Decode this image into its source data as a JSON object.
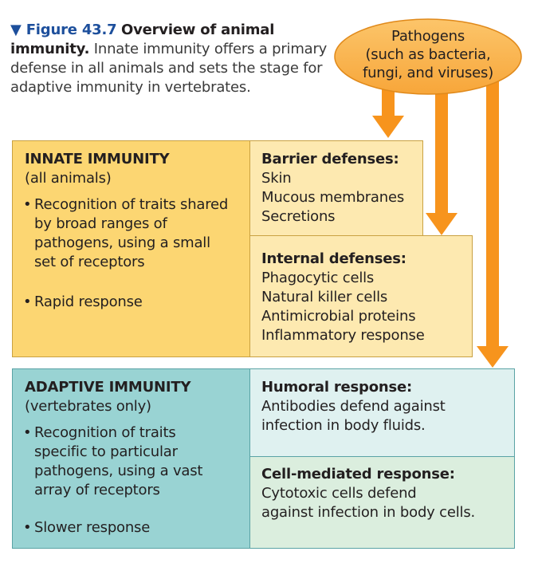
{
  "caption": {
    "figure_label": "▼ Figure 43.7",
    "title": "Overview of animal immunity.",
    "body": "Innate immunity offers a primary defense in all animals and sets the stage for adaptive immunity in vertebrates."
  },
  "pathogens": {
    "line1": "Pathogens",
    "line2": "(such as bacteria,",
    "line3": "fungi, and viruses)"
  },
  "innate": {
    "heading": "INNATE IMMUNITY",
    "subheading": "(all animals)",
    "bullet1_lines": [
      "Recognition of traits shared",
      "by broad ranges of",
      "pathogens, using a small",
      "set of receptors"
    ],
    "bullet2": "Rapid response"
  },
  "barrier": {
    "heading": "Barrier defenses:",
    "items": [
      "Skin",
      "Mucous membranes",
      "Secretions"
    ]
  },
  "internal": {
    "heading": "Internal defenses:",
    "items": [
      "Phagocytic cells",
      "Natural killer cells",
      "Antimicrobial proteins",
      "Inflammatory response"
    ]
  },
  "adaptive": {
    "heading": "ADAPTIVE IMMUNITY",
    "subheading": "(vertebrates only)",
    "bullet1_lines": [
      "Recognition of traits",
      "specific to particular",
      "pathogens, using a vast",
      "array of receptors"
    ],
    "bullet2": "Slower response"
  },
  "humoral": {
    "heading": "Humoral response:",
    "lines": [
      "Antibodies defend against",
      "infection in body fluids."
    ]
  },
  "cell_mediated": {
    "heading": "Cell-mediated response:",
    "lines": [
      "Cytotoxic cells defend",
      "against infection in body cells."
    ]
  },
  "colors": {
    "figure_label": "#1d4f9c",
    "arrow": "#f7941d",
    "pathogen_ellipse": "#fbb040",
    "innate": "#fcd672",
    "innate_light": "#fde9b0",
    "adaptive": "#99d3d3",
    "adaptive_light": "#dff1f0"
  }
}
